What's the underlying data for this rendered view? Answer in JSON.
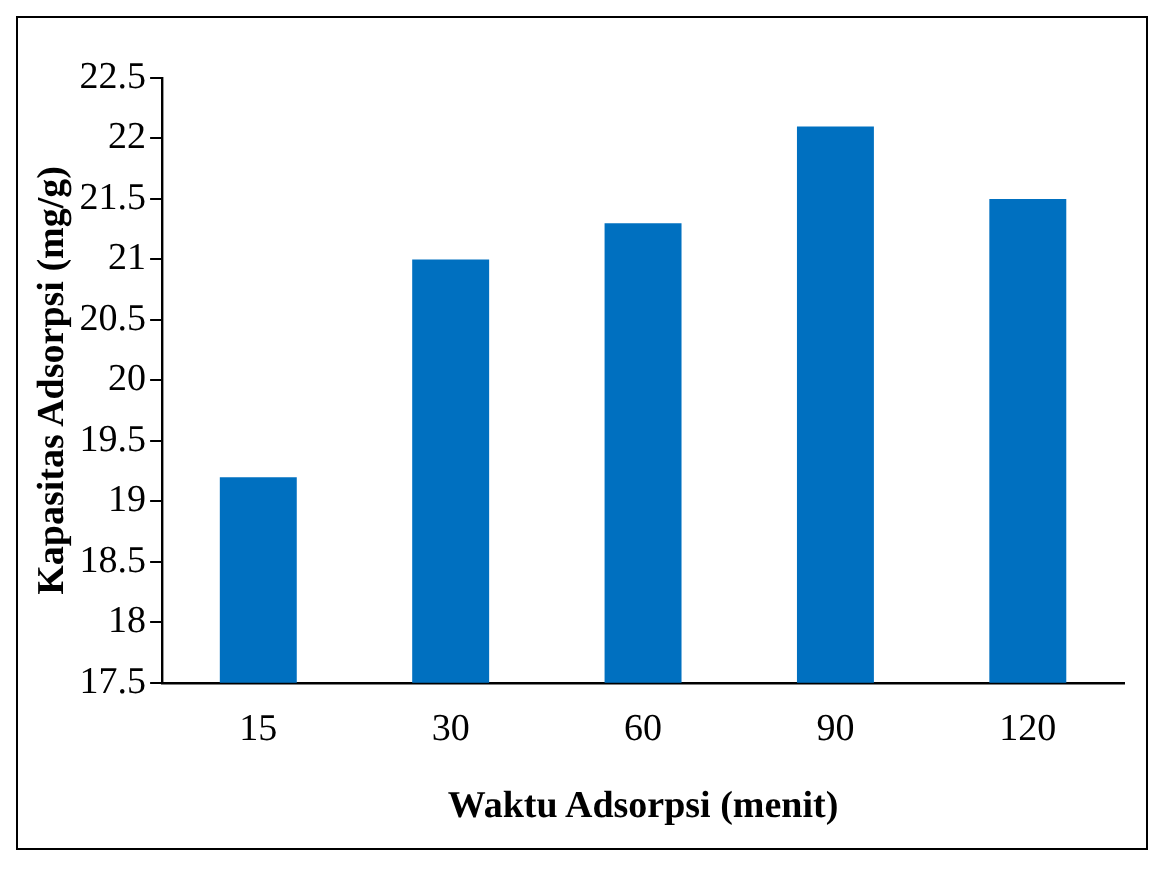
{
  "chart_data": {
    "type": "bar",
    "xlabel": "Waktu Adsorpsi (menit)",
    "ylabel": "Kapasitas Adsorpsi (mg/g)",
    "categories": [
      "15",
      "30",
      "60",
      "90",
      "120"
    ],
    "values": [
      19.2,
      21.0,
      21.3,
      22.1,
      21.5
    ],
    "color": "#0070c0",
    "ylim": [
      17.5,
      22.5
    ],
    "yticks": [
      {
        "value": 17.5,
        "label": "17.5"
      },
      18,
      {
        "value": 18.5,
        "label": "18.5"
      },
      19,
      {
        "value": 19.5,
        "label": "19.5"
      },
      20,
      {
        "value": 20.5,
        "label": "20.5"
      },
      21,
      {
        "value": 21.5,
        "label": "21.5"
      },
      22,
      {
        "value": 22.5,
        "label": "22.5"
      }
    ],
    "grid": false
  }
}
